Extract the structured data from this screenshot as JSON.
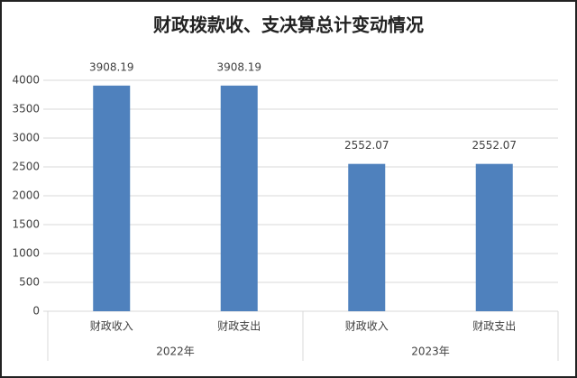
{
  "chart_data": {
    "type": "bar",
    "title": "财政拨款收、支决算总计变动情况",
    "color": "#4f81bd",
    "groups": [
      {
        "name": "2022年",
        "categories": [
          "财政收入",
          "财政支出"
        ],
        "values": [
          3908.19,
          3908.19
        ]
      },
      {
        "name": "2023年",
        "categories": [
          "财政收入",
          "财政支出"
        ],
        "values": [
          2552.07,
          2552.07
        ]
      }
    ],
    "ylim": [
      0,
      4000
    ],
    "yticks": [
      0,
      500,
      1000,
      1500,
      2000,
      2500,
      3000,
      3500,
      4000
    ],
    "grid": true
  }
}
